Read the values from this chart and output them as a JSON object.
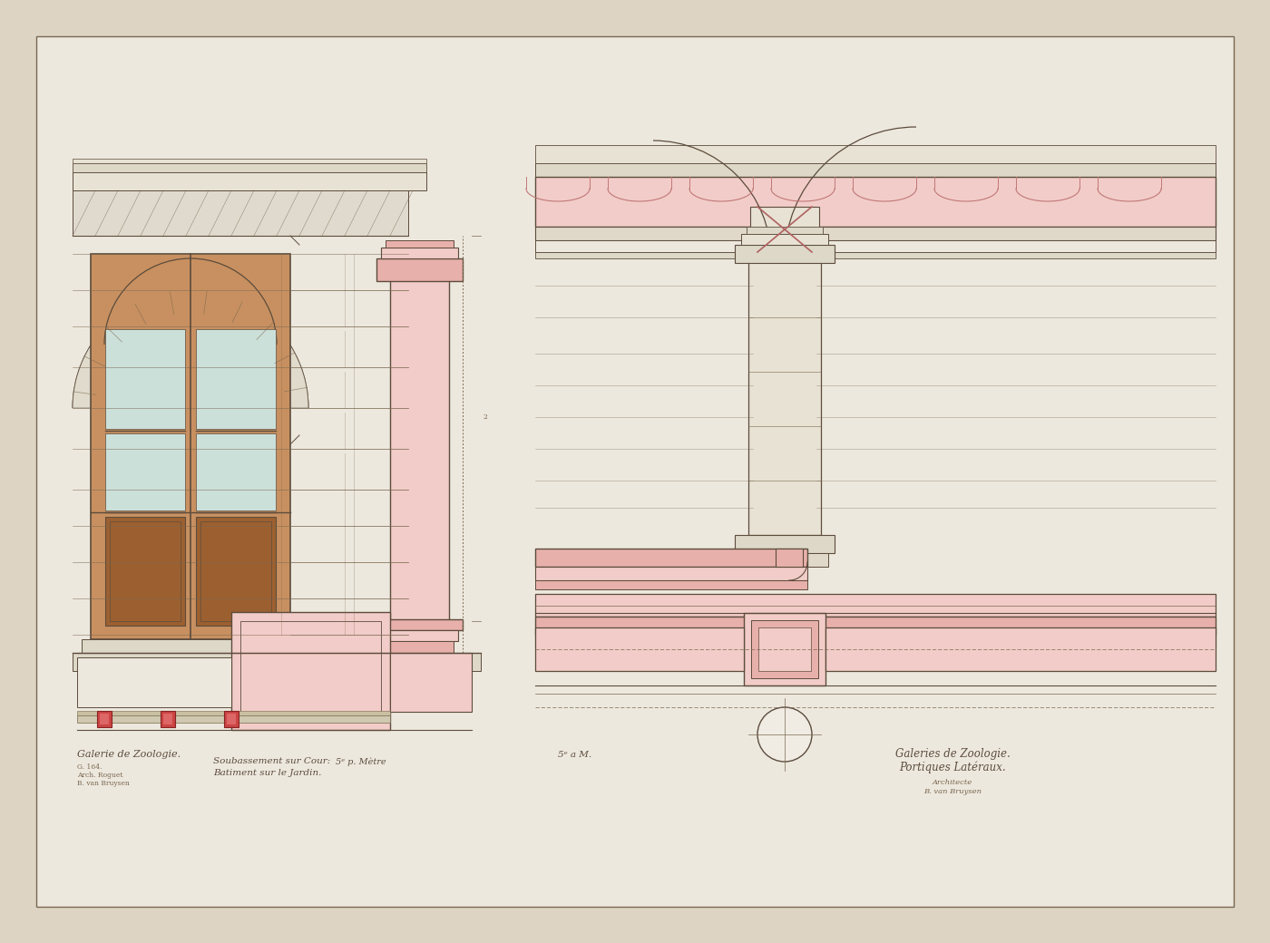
{
  "bg_color": "#ddd4c4",
  "paper_color": "#ede8de",
  "pink": "#e8b0aa",
  "pink_light": "#f2ccc8",
  "brown_dark": "#9c6030",
  "brown_light": "#c89060",
  "stone": "#ede8de",
  "stone_dark": "#ddd6c4",
  "line_color": "#7a6850",
  "dark_line": "#5c4c3c",
  "red_accent": "#cc4444",
  "title_left": "Galerie de Zoologie.",
  "subtitle_left": "Soubassement sur Cour:\nBatiment sur le Jardin.",
  "scale_left": "5ᵉ p. Mètre",
  "title_right1": "Galeries de Zoologie.",
  "title_right2": "Portiques Latéraux.",
  "scale_right": "5ᵉ a M.",
  "author_line1": "Architecte",
  "author_line2": "B. van Bruysen"
}
